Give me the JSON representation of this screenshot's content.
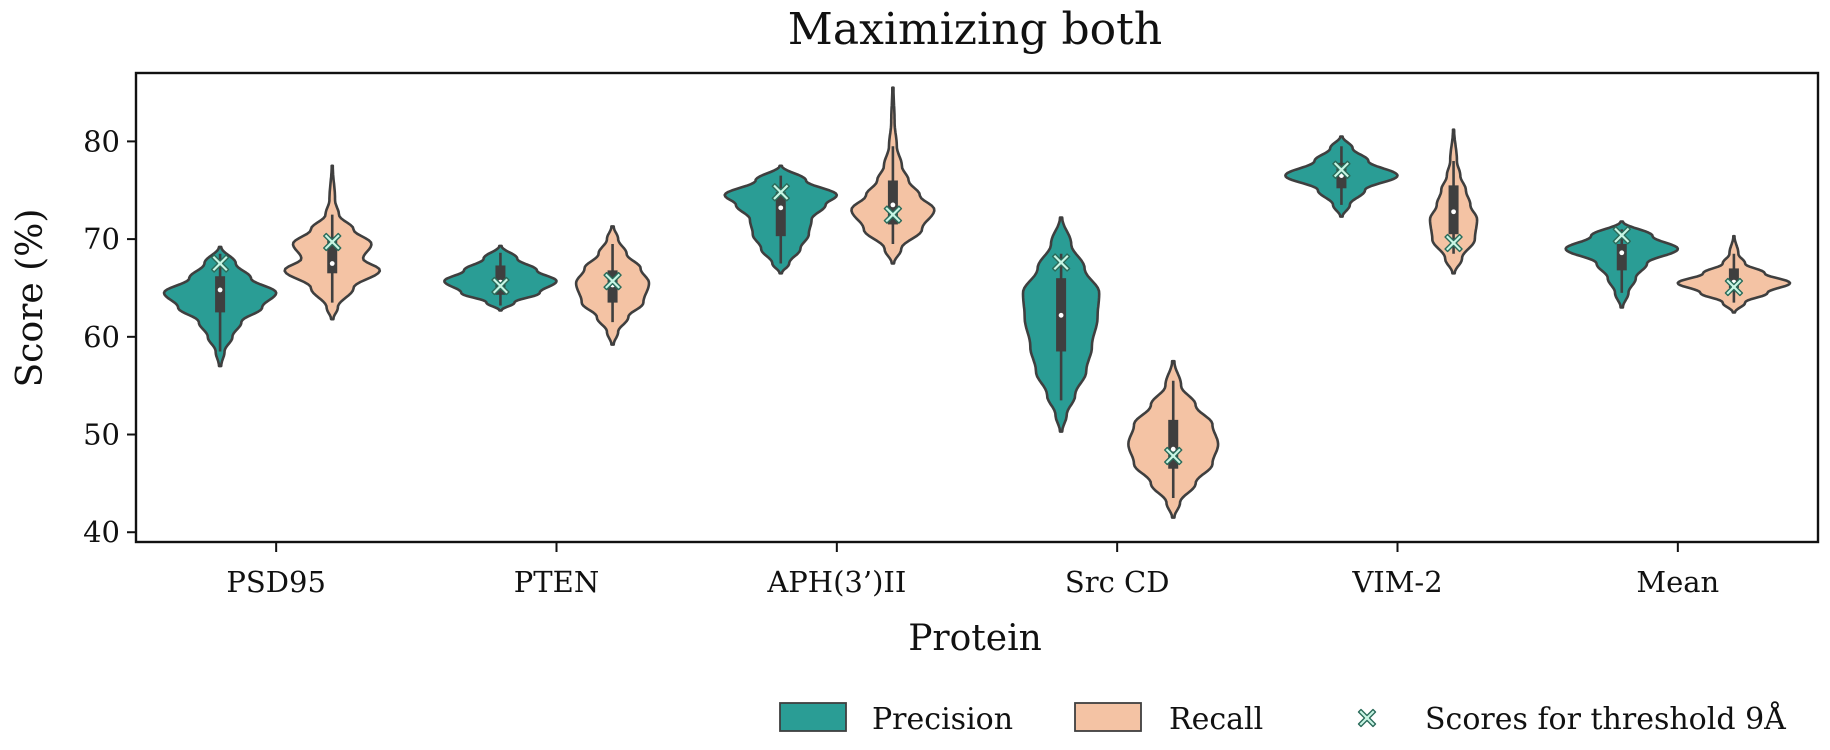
{
  "chart_data": {
    "type": "violin",
    "title": "Maximizing both",
    "xlabel": "Protein",
    "ylabel": "Score (%)",
    "categories": [
      "PSD95",
      "PTEN",
      "APH(3’)II",
      "Src CD",
      "VIM-2",
      "Mean"
    ],
    "ylim": [
      39,
      87
    ],
    "yticks": [
      40,
      50,
      60,
      70,
      80
    ],
    "grid": false,
    "legend_position": "bottom-right",
    "series": [
      {
        "name": "Precision",
        "color": "#2a9d95",
        "violins": [
          {
            "min": 57,
            "max": 69.2,
            "q1": 62.5,
            "median": 64.8,
            "q3": 66.2,
            "wmin": 58.5,
            "wmax": 68.5,
            "profile": [
              [
                57,
                0.02
              ],
              [
                58.5,
                0.08
              ],
              [
                60,
                0.22
              ],
              [
                61.5,
                0.38
              ],
              [
                63,
                0.75
              ],
              [
                64.5,
                1.0
              ],
              [
                66,
                0.55
              ],
              [
                67.5,
                0.28
              ],
              [
                69.2,
                0.02
              ]
            ]
          },
          {
            "min": 62.7,
            "max": 69.3,
            "q1": 64.3,
            "median": 65.6,
            "q3": 67.3,
            "wmin": 63.2,
            "wmax": 68.6,
            "profile": [
              [
                62.7,
                0.02
              ],
              [
                63.5,
                0.25
              ],
              [
                64.5,
                0.7
              ],
              [
                65.7,
                1.0
              ],
              [
                66.8,
                0.65
              ],
              [
                68,
                0.3
              ],
              [
                69.3,
                0.02
              ]
            ]
          },
          {
            "min": 66.5,
            "max": 77.5,
            "q1": 70.3,
            "median": 73.2,
            "q3": 74.8,
            "wmin": 67.5,
            "wmax": 76.5,
            "profile": [
              [
                66.5,
                0.02
              ],
              [
                67.5,
                0.15
              ],
              [
                69,
                0.35
              ],
              [
                70.5,
                0.5
              ],
              [
                72,
                0.55
              ],
              [
                73.5,
                0.8
              ],
              [
                74.5,
                1.0
              ],
              [
                76,
                0.45
              ],
              [
                77.5,
                0.02
              ]
            ]
          },
          {
            "min": 50.3,
            "max": 72.2,
            "q1": 58.5,
            "median": 62.2,
            "q3": 66,
            "wmin": 53.5,
            "wmax": 68.5,
            "profile": [
              [
                50.3,
                0.02
              ],
              [
                52,
                0.1
              ],
              [
                54,
                0.25
              ],
              [
                56.5,
                0.45
              ],
              [
                59,
                0.55
              ],
              [
                62,
                0.65
              ],
              [
                64.5,
                0.68
              ],
              [
                67,
                0.42
              ],
              [
                69.5,
                0.18
              ],
              [
                72.2,
                0.02
              ]
            ]
          },
          {
            "min": 72.3,
            "max": 80.5,
            "q1": 75.2,
            "median": 76.5,
            "q3": 77.8,
            "wmin": 73.5,
            "wmax": 79.5,
            "profile": [
              [
                72.3,
                0.02
              ],
              [
                73.5,
                0.15
              ],
              [
                75,
                0.42
              ],
              [
                76.5,
                1.0
              ],
              [
                78,
                0.48
              ],
              [
                79.3,
                0.2
              ],
              [
                80.5,
                0.02
              ]
            ]
          },
          {
            "min": 63,
            "max": 71.8,
            "q1": 66.8,
            "median": 68.6,
            "q3": 69.5,
            "wmin": 64.5,
            "wmax": 71,
            "profile": [
              [
                63,
                0.02
              ],
              [
                64.5,
                0.12
              ],
              [
                66,
                0.25
              ],
              [
                67.5,
                0.45
              ],
              [
                69,
                1.0
              ],
              [
                70.3,
                0.55
              ],
              [
                71.8,
                0.02
              ]
            ]
          }
        ]
      },
      {
        "name": "Recall",
        "color": "#f4c3a4",
        "violins": [
          {
            "min": 61.8,
            "max": 77.5,
            "q1": 66.5,
            "median": 67.5,
            "q3": 70,
            "wmin": 63.5,
            "wmax": 72.5,
            "profile": [
              [
                61.8,
                0.02
              ],
              [
                63,
                0.1
              ],
              [
                65,
                0.38
              ],
              [
                66.8,
                0.85
              ],
              [
                68,
                0.55
              ],
              [
                69.5,
                0.7
              ],
              [
                71,
                0.38
              ],
              [
                72.5,
                0.12
              ],
              [
                74,
                0.05
              ],
              [
                77.5,
                0.01
              ]
            ]
          },
          {
            "min": 59.2,
            "max": 71.3,
            "q1": 63.5,
            "median": 65.3,
            "q3": 66.8,
            "wmin": 61.5,
            "wmax": 69.5,
            "profile": [
              [
                59.2,
                0.02
              ],
              [
                60.5,
                0.1
              ],
              [
                62,
                0.28
              ],
              [
                63.5,
                0.55
              ],
              [
                65.5,
                0.65
              ],
              [
                67,
                0.5
              ],
              [
                68.5,
                0.25
              ],
              [
                70,
                0.1
              ],
              [
                71.3,
                0.02
              ]
            ]
          },
          {
            "min": 67.5,
            "max": 85.5,
            "q1": 71.5,
            "median": 73.5,
            "q3": 76,
            "wmin": 69.5,
            "wmax": 79.5,
            "profile": [
              [
                67.5,
                0.02
              ],
              [
                69,
                0.15
              ],
              [
                71,
                0.52
              ],
              [
                73,
                0.74
              ],
              [
                74.5,
                0.48
              ],
              [
                76,
                0.28
              ],
              [
                77.5,
                0.16
              ],
              [
                79.5,
                0.07
              ],
              [
                82,
                0.03
              ],
              [
                85.5,
                0.01
              ]
            ]
          },
          {
            "min": 41.5,
            "max": 57.5,
            "q1": 46.5,
            "median": 48.5,
            "q3": 51.5,
            "wmin": 43.5,
            "wmax": 55.5,
            "profile": [
              [
                41.5,
                0.02
              ],
              [
                43,
                0.12
              ],
              [
                45,
                0.4
              ],
              [
                47,
                0.7
              ],
              [
                49,
                0.8
              ],
              [
                51,
                0.7
              ],
              [
                53,
                0.4
              ],
              [
                55,
                0.14
              ],
              [
                57.5,
                0.02
              ]
            ]
          },
          {
            "min": 66.5,
            "max": 81.2,
            "q1": 70.5,
            "median": 72.8,
            "q3": 75.5,
            "wmin": 68.5,
            "wmax": 78,
            "profile": [
              [
                66.5,
                0.02
              ],
              [
                68,
                0.15
              ],
              [
                70,
                0.38
              ],
              [
                72,
                0.42
              ],
              [
                73.5,
                0.3
              ],
              [
                75,
                0.22
              ],
              [
                76.5,
                0.12
              ],
              [
                78,
                0.06
              ],
              [
                81.2,
                0.01
              ]
            ]
          },
          {
            "min": 62.5,
            "max": 70.3,
            "q1": 65,
            "median": 65.6,
            "q3": 67,
            "wmin": 63.5,
            "wmax": 68.5,
            "profile": [
              [
                62.5,
                0.02
              ],
              [
                63.5,
                0.2
              ],
              [
                64.5,
                0.6
              ],
              [
                65.5,
                1.0
              ],
              [
                66.5,
                0.55
              ],
              [
                67.5,
                0.2
              ],
              [
                68.5,
                0.08
              ],
              [
                70.3,
                0.01
              ]
            ]
          }
        ]
      }
    ],
    "threshold_scores": {
      "name": "Scores for threshold 9Å",
      "marker_color": "#c8f5e4",
      "precision": [
        67.5,
        65.2,
        74.8,
        67.6,
        77.1,
        70.4
      ],
      "recall": [
        69.7,
        65.7,
        72.5,
        47.8,
        69.6,
        65.1
      ]
    },
    "legend": [
      {
        "label": "Precision",
        "swatch": "#2a9d95"
      },
      {
        "label": "Recall",
        "swatch": "#f4c3a4"
      },
      {
        "label": "Scores for threshold 9Å",
        "marker": "x"
      }
    ]
  }
}
